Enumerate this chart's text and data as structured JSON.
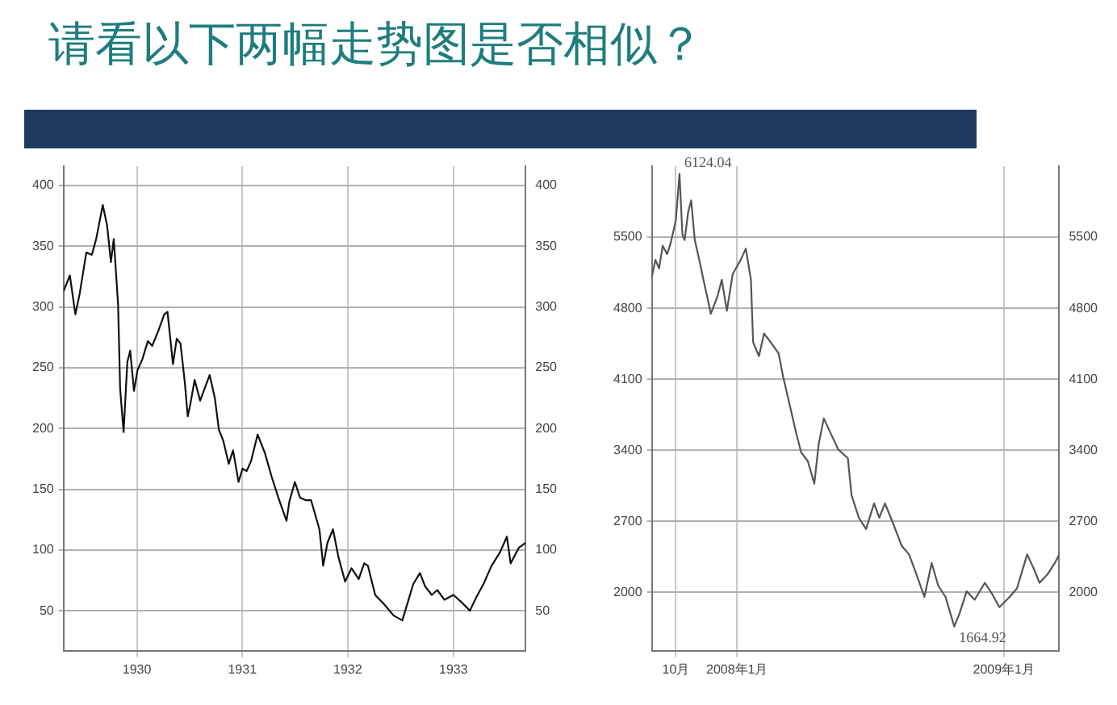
{
  "chart_data": [
    {
      "type": "line",
      "title": "请看以下两幅走势图是否相似？",
      "x": [
        "1929-04-22",
        "1929-05-14",
        "1929-06-02",
        "1929-06-17",
        "1929-07-10",
        "1929-07-29",
        "1929-08-13",
        "1929-09-05",
        "1929-09-20",
        "1929-10-03",
        "1929-10-13",
        "1929-10-28",
        "1929-11-04",
        "1929-11-16",
        "1929-11-29",
        "1929-12-09",
        "1929-12-22",
        "1930-01-03",
        "1930-01-20",
        "1930-02-08",
        "1930-02-23",
        "1930-03-14",
        "1930-04-06",
        "1930-04-17",
        "1930-05-06",
        "1930-05-19",
        "1930-06-01",
        "1930-06-16",
        "1930-06-26",
        "1930-07-05",
        "1930-07-20",
        "1930-08-08",
        "1930-09-10",
        "1930-09-28",
        "1930-10-12",
        "1930-10-27",
        "1930-11-15",
        "1930-11-30",
        "1930-12-19",
        "1931-01-02",
        "1931-01-16",
        "1931-01-31",
        "1931-02-23",
        "1931-03-20",
        "1931-04-13",
        "1931-05-06",
        "1931-06-03",
        "1931-06-13",
        "1931-07-02",
        "1931-07-20",
        "1931-08-08",
        "1931-08-27",
        "1931-09-25",
        "1931-10-08",
        "1931-10-23",
        "1931-11-11",
        "1931-11-30",
        "1931-12-23",
        "1932-01-14",
        "1932-02-08",
        "1932-02-27",
        "1932-03-11",
        "1932-04-05",
        "1932-05-07",
        "1932-06-08",
        "1932-07-08",
        "1932-07-27",
        "1932-08-15",
        "1932-09-07",
        "1932-09-25",
        "1932-10-18",
        "1932-11-06",
        "1932-12-01",
        "1933-01-01",
        "1933-01-29",
        "1933-02-27",
        "1933-03-21",
        "1933-04-15",
        "1933-05-13",
        "1933-06-11",
        "1933-07-05",
        "1933-07-18",
        "1933-08-16",
        "1933-09-08"
      ],
      "series": [
        {
          "color": "#111111",
          "values": [
            313,
            326,
            294,
            311,
            345,
            343,
            356,
            384,
            367,
            337,
            356,
            302,
            233,
            197,
            255,
            264,
            231,
            248,
            257,
            272,
            268,
            279,
            294,
            296,
            253,
            274,
            270,
            238,
            210,
            220,
            240,
            223,
            244,
            225,
            199,
            190,
            171,
            182,
            156,
            167,
            165,
            173,
            195,
            180,
            160,
            143,
            124,
            140,
            156,
            143,
            141,
            141,
            117,
            87,
            106,
            117,
            94,
            74,
            85,
            76,
            89,
            87,
            63,
            55,
            46,
            42,
            57,
            72,
            81,
            70,
            63,
            67,
            59,
            63,
            57,
            50,
            61,
            72,
            87,
            98,
            111,
            89,
            102,
            106
          ]
        }
      ],
      "xlim": [
        "1929-04-22",
        "1933-09-08"
      ],
      "xticks": [
        "1930",
        "1931",
        "1932",
        "1933"
      ],
      "ylim": [
        17,
        416
      ],
      "yticks": [
        50,
        100,
        150,
        200,
        250,
        300,
        350,
        400
      ],
      "y2lim": [
        17,
        416
      ],
      "y2ticks": [
        50,
        100,
        150,
        200,
        250,
        300,
        350,
        400
      ],
      "grid": true,
      "marker": "none",
      "line_style": "solid"
    },
    {
      "type": "line",
      "x": [
        "2007-09-06",
        "2007-09-11",
        "2007-09-16",
        "2007-09-21",
        "2007-09-27",
        "2007-10-02",
        "2007-10-09",
        "2007-10-14",
        "2007-10-18",
        "2007-10-21",
        "2007-10-26",
        "2007-10-30",
        "2007-11-04",
        "2007-11-11",
        "2007-11-15",
        "2007-11-21",
        "2007-11-26",
        "2007-12-05",
        "2007-12-11",
        "2007-12-18",
        "2007-12-26",
        "2008-01-06",
        "2008-01-13",
        "2008-01-20",
        "2008-01-23",
        "2008-01-31",
        "2008-02-07",
        "2008-02-16",
        "2008-02-27",
        "2008-03-04",
        "2008-03-13",
        "2008-03-22",
        "2008-03-29",
        "2008-04-07",
        "2008-04-16",
        "2008-04-22",
        "2008-04-29",
        "2008-05-08",
        "2008-05-19",
        "2008-06-01",
        "2008-06-06",
        "2008-06-16",
        "2008-06-26",
        "2008-07-07",
        "2008-07-14",
        "2008-07-22",
        "2008-08-02",
        "2008-08-14",
        "2008-08-24",
        "2008-09-03",
        "2008-09-14",
        "2008-09-24",
        "2008-10-03",
        "2008-10-13",
        "2008-10-25",
        "2008-11-01",
        "2008-11-11",
        "2008-11-22",
        "2008-12-06",
        "2008-12-16",
        "2008-12-26",
        "2009-01-09",
        "2009-01-19",
        "2009-02-02",
        "2009-02-11",
        "2009-02-19",
        "2009-03-02",
        "2009-03-12",
        "2009-03-18"
      ],
      "series": [
        {
          "color": "#555555",
          "values": [
            5109,
            5277,
            5193,
            5416,
            5333,
            5444,
            5667,
            6124.04,
            5528,
            5472,
            5751,
            5863,
            5472,
            5249,
            5109,
            4914,
            4746,
            4914,
            5081,
            4774,
            5137,
            5277,
            5388,
            5081,
            4467,
            4328,
            4551,
            4467,
            4356,
            4132,
            3853,
            3574,
            3379,
            3295,
            3072,
            3463,
            3714,
            3574,
            3407,
            3323,
            2960,
            2737,
            2625,
            2877,
            2737,
            2877,
            2681,
            2458,
            2374,
            2179,
            1956,
            2290,
            2067,
            1956,
            1664.92,
            1788,
            2011,
            1928,
            2095,
            1984,
            1855,
            1956,
            2039,
            2374,
            2235,
            2095,
            2179,
            2290,
            2374
          ]
        }
      ],
      "xlim": [
        "2007-09-06",
        "2009-03-18"
      ],
      "xticks": [
        {
          "value": "2007-10-09",
          "label": "10月"
        },
        {
          "value": "2008-01-01",
          "label": "2008年1月"
        },
        {
          "value": "2009-01-01",
          "label": "2009年1月"
        }
      ],
      "ylim": [
        1425,
        6200
      ],
      "yticks": [
        2000,
        2700,
        3400,
        4100,
        4800,
        5500
      ],
      "y2lim": [
        1425,
        6200
      ],
      "y2ticks": [
        2000,
        2700,
        3400,
        4100,
        4800,
        5500
      ],
      "annotations": [
        {
          "text": "6124.04",
          "x": "2007-10-14",
          "y": 6124.04
        },
        {
          "text": "1664.92",
          "x": "2008-10-25",
          "y": 1664.92
        }
      ],
      "grid": true,
      "marker": "none",
      "line_style": "solid"
    }
  ]
}
